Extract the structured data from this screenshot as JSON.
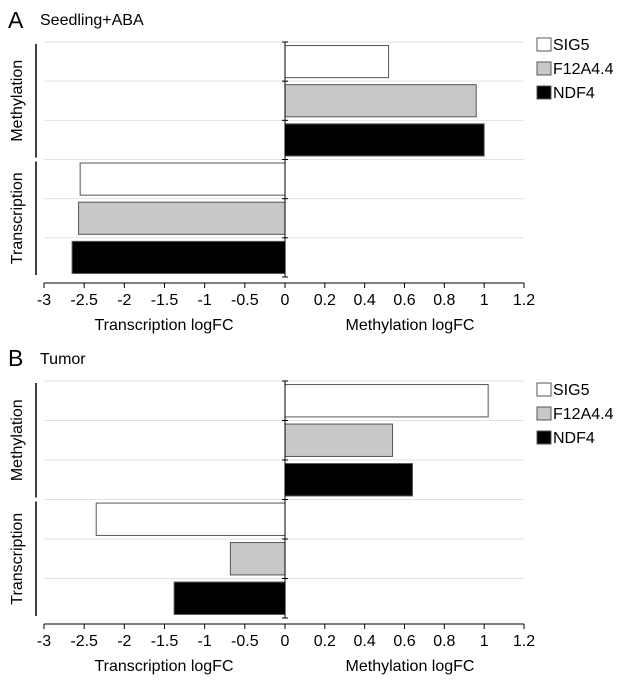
{
  "chart_data": [
    {
      "panel_letter": "A",
      "title": "Seedling+ABA",
      "type": "bar",
      "orientation": "horizontal",
      "groups": [
        "Methylation",
        "Transcription"
      ],
      "series": [
        {
          "name": "SIG5",
          "color": "#ffffff",
          "methylation": 0.52,
          "transcription": -2.55
        },
        {
          "name": "F12A4.4",
          "color": "#c8c8c8",
          "methylation": 0.96,
          "transcription": -2.57
        },
        {
          "name": "NDF4",
          "color": "#000000",
          "methylation": 1.0,
          "transcription": -2.65
        }
      ],
      "x_ticks_left": [
        "-3",
        "-2.5",
        "-2",
        "-1.5",
        "-1",
        "-0.5",
        "0"
      ],
      "x_ticks_right": [
        "0.2",
        "0.4",
        "0.6",
        "0.8",
        "1",
        "1.2"
      ],
      "xlabel_left": "Transcription logFC",
      "xlabel_right": "Methylation logFC",
      "xlim_left": [
        -3,
        0
      ],
      "xlim_right": [
        0,
        1.2
      ],
      "grid": true,
      "legend": "top-right"
    },
    {
      "panel_letter": "B",
      "title": "Tumor",
      "type": "bar",
      "orientation": "horizontal",
      "groups": [
        "Methylation",
        "Transcription"
      ],
      "series": [
        {
          "name": "SIG5",
          "color": "#ffffff",
          "methylation": 1.02,
          "transcription": -2.35
        },
        {
          "name": "F12A4.4",
          "color": "#c8c8c8",
          "methylation": 0.54,
          "transcription": -0.68
        },
        {
          "name": "NDF4",
          "color": "#000000",
          "methylation": 0.64,
          "transcription": -1.38
        }
      ],
      "x_ticks_left": [
        "-3",
        "-2.5",
        "-2",
        "-1.5",
        "-1",
        "-0.5",
        "0"
      ],
      "x_ticks_right": [
        "0.2",
        "0.4",
        "0.6",
        "0.8",
        "1",
        "1.2"
      ],
      "xlabel_left": "Transcription logFC",
      "xlabel_right": "Methylation logFC",
      "xlim_left": [
        -3,
        0
      ],
      "xlim_right": [
        0,
        1.2
      ],
      "grid": true,
      "legend": "top-right"
    }
  ]
}
